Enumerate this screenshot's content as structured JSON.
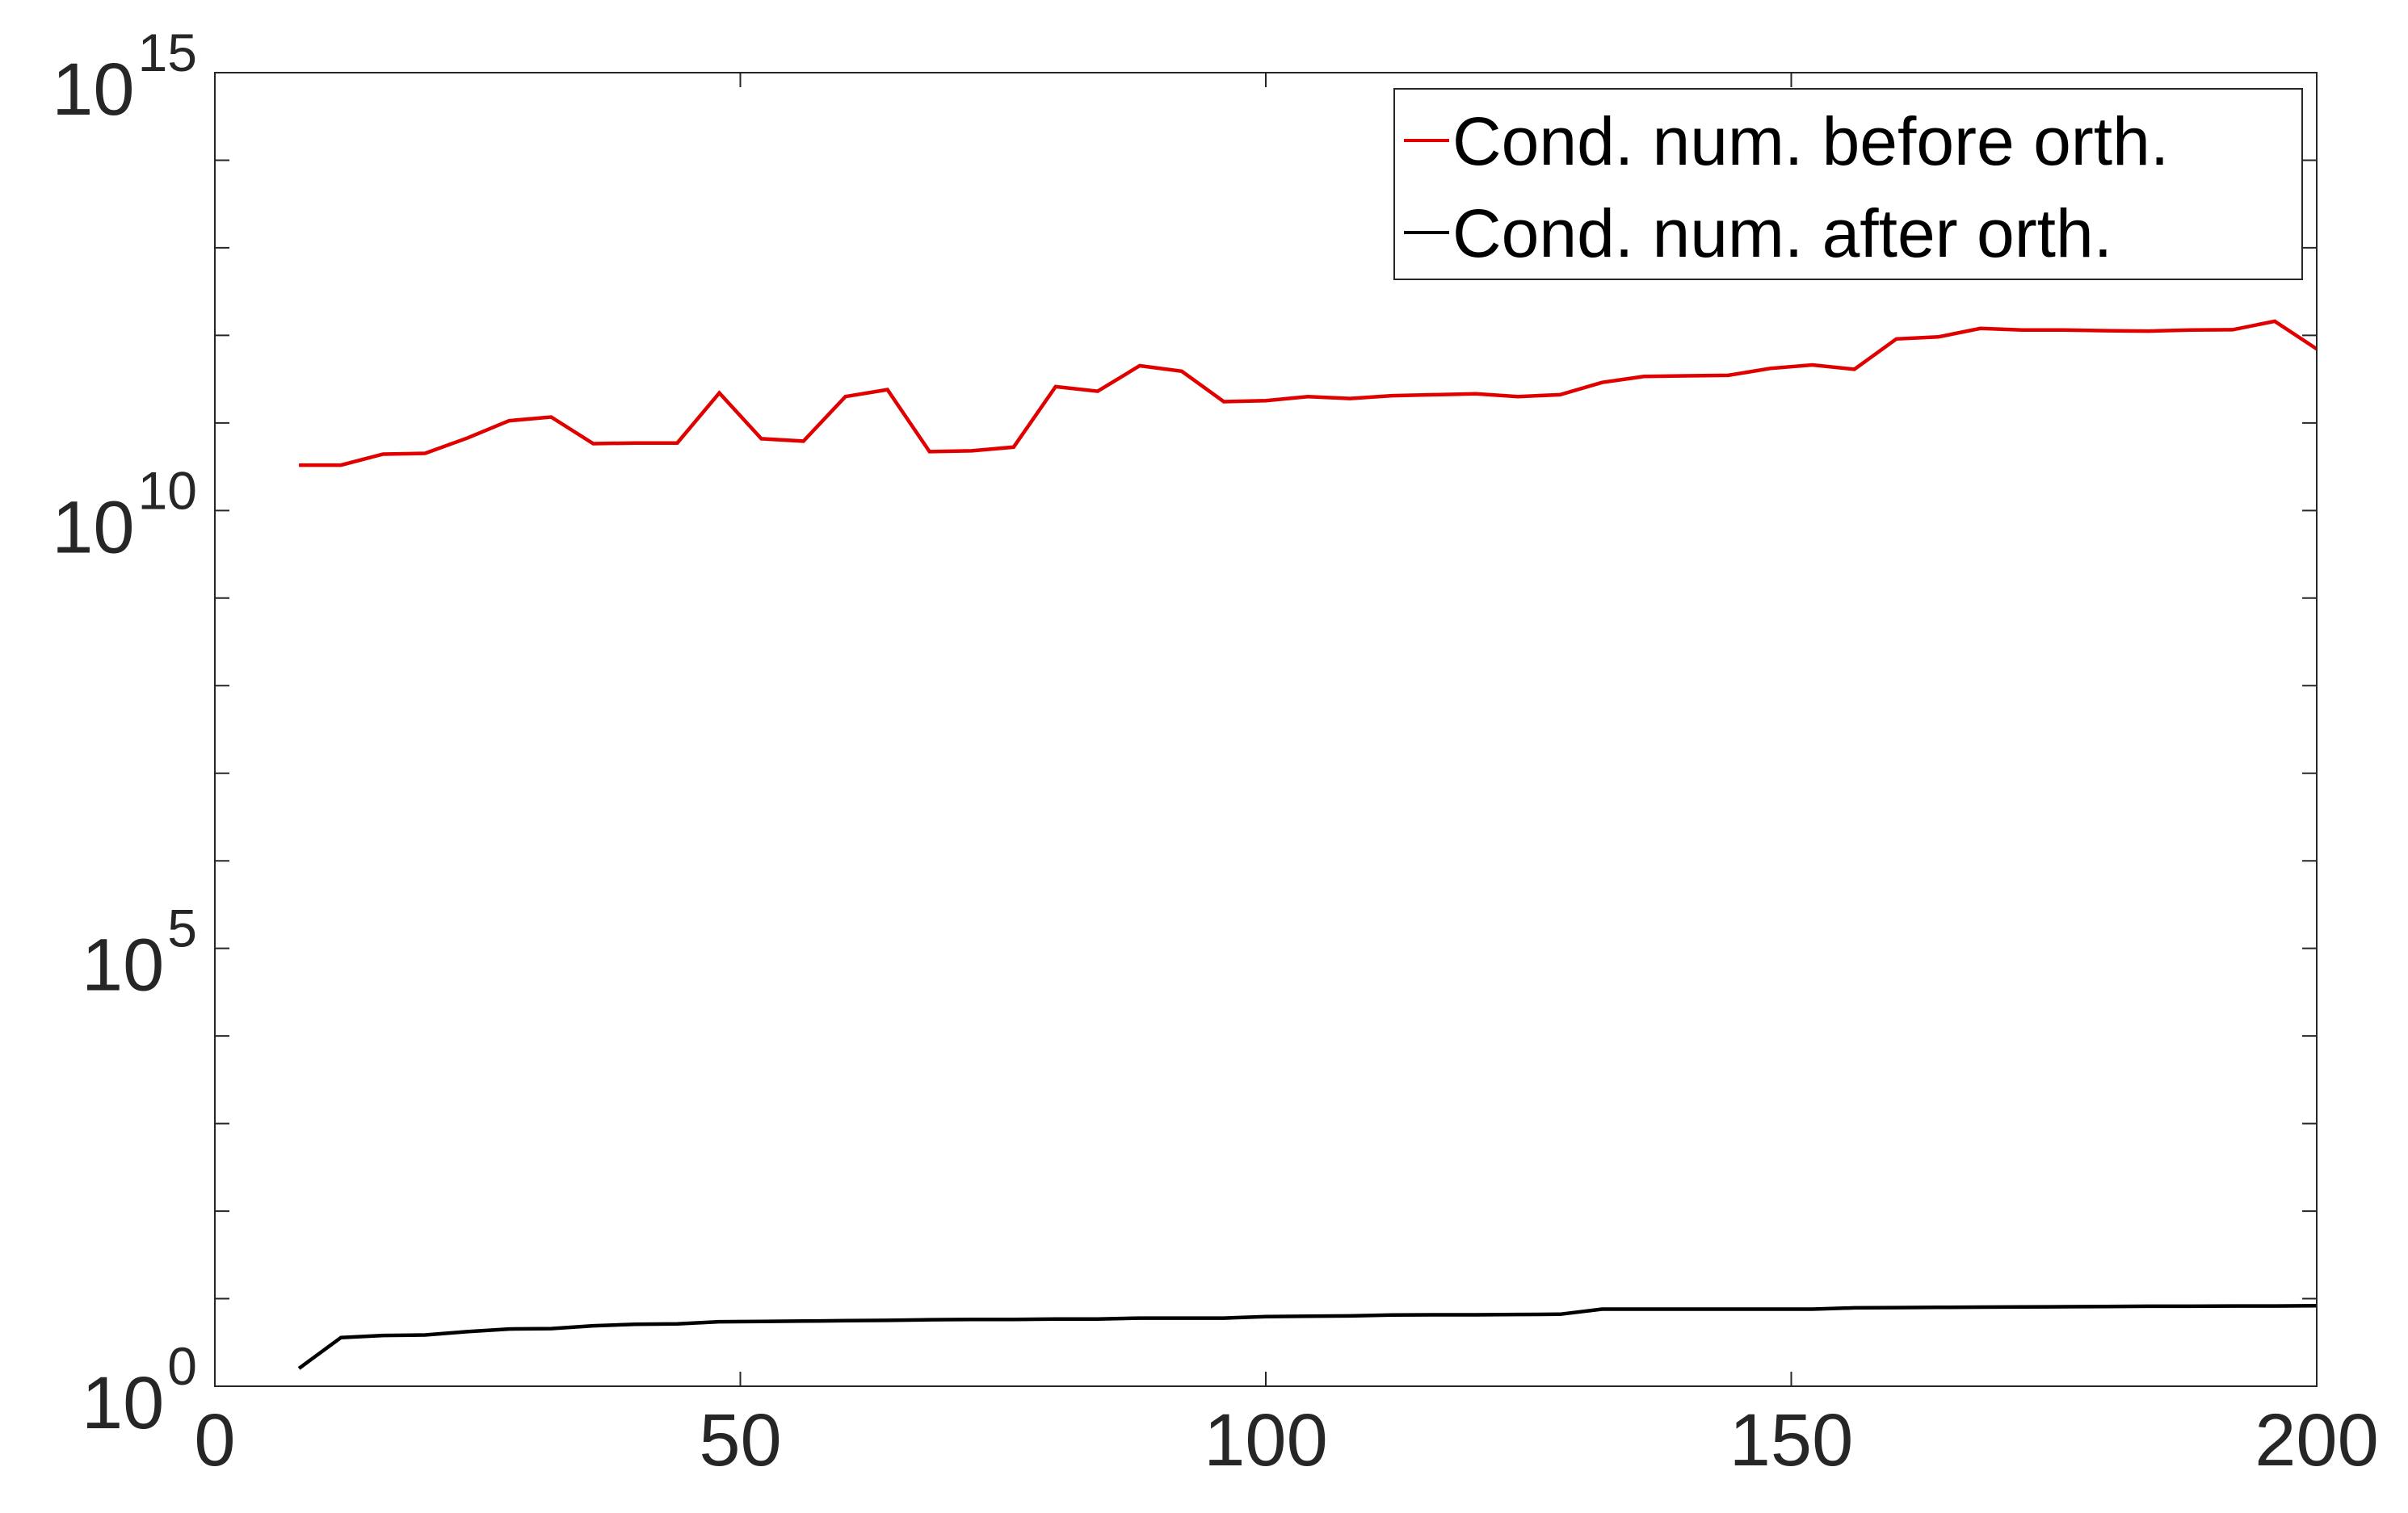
{
  "chart_data": {
    "type": "line",
    "title": "",
    "xlabel": "",
    "ylabel": "",
    "xlim": [
      0,
      200
    ],
    "ylim": [
      1,
      1000000000000000.0
    ],
    "yscale": "log",
    "grid": false,
    "legend_placement": "top-right",
    "x_ticks": [
      "0",
      "50",
      "100",
      "150",
      "200"
    ],
    "y_ticks": [
      {
        "base": "10",
        "exp": "0"
      },
      {
        "base": "10",
        "exp": "5"
      },
      {
        "base": "10",
        "exp": "10"
      },
      {
        "base": "10",
        "exp": "15"
      }
    ],
    "series": [
      {
        "name": "Cond. num. before orth.",
        "color": "#e00000",
        "x": [
          8,
          12,
          16,
          20,
          24,
          28,
          32,
          36,
          40,
          44,
          48,
          52,
          56,
          60,
          64,
          68,
          72,
          76,
          80,
          84,
          88,
          92,
          96,
          100,
          104,
          108,
          112,
          116,
          120,
          124,
          128,
          132,
          136,
          140,
          144,
          148,
          152,
          156,
          160,
          164,
          168,
          172,
          176,
          180,
          184,
          188,
          192,
          196,
          200
        ],
        "y": [
          33000000000.0,
          33000000000.0,
          44000000000.0,
          45000000000.0,
          67000000000.0,
          106000000000.0,
          117000000000.0,
          58000000000.0,
          59000000000.0,
          59000000000.0,
          220000000000.0,
          66000000000.0,
          62000000000.0,
          200000000000.0,
          240000000000.0,
          47000000000.0,
          48000000000.0,
          53000000000.0,
          260000000000.0,
          230000000000.0,
          450000000000.0,
          390000000000.0,
          175000000000.0,
          180000000000.0,
          200000000000.0,
          190000000000.0,
          205000000000.0,
          210000000000.0,
          215000000000.0,
          200000000000.0,
          210000000000.0,
          290000000000.0,
          340000000000.0,
          345000000000.0,
          350000000000.0,
          420000000000.0,
          460000000000.0,
          410000000000.0,
          910000000000.0,
          960000000000.0,
          1200000000000.0,
          1150000000000.0,
          1150000000000.0,
          1130000000000.0,
          1120000000000.0,
          1150000000000.0,
          1160000000000.0,
          1450000000000.0,
          700000000000.0
        ]
      },
      {
        "name": "Cond. num. after orth.",
        "color": "#000000",
        "x": [
          8,
          12,
          16,
          20,
          24,
          28,
          32,
          36,
          40,
          44,
          48,
          52,
          56,
          60,
          64,
          68,
          72,
          76,
          80,
          84,
          88,
          92,
          96,
          100,
          104,
          108,
          112,
          116,
          120,
          124,
          128,
          132,
          136,
          140,
          144,
          148,
          152,
          156,
          160,
          164,
          168,
          172,
          176,
          180,
          184,
          188,
          192,
          196,
          200
        ],
        "y": [
          1.6,
          3.6,
          3.8,
          3.85,
          4.2,
          4.5,
          4.55,
          4.9,
          5.1,
          5.15,
          5.45,
          5.5,
          5.55,
          5.6,
          5.65,
          5.75,
          5.8,
          5.8,
          5.85,
          5.85,
          6.0,
          6.0,
          6.0,
          6.25,
          6.3,
          6.35,
          6.5,
          6.55,
          6.55,
          6.6,
          6.65,
          7.6,
          7.6,
          7.6,
          7.6,
          7.6,
          7.6,
          7.85,
          7.9,
          7.95,
          8.0,
          8.05,
          8.1,
          8.15,
          8.2,
          8.2,
          8.25,
          8.25,
          8.3
        ]
      }
    ]
  }
}
